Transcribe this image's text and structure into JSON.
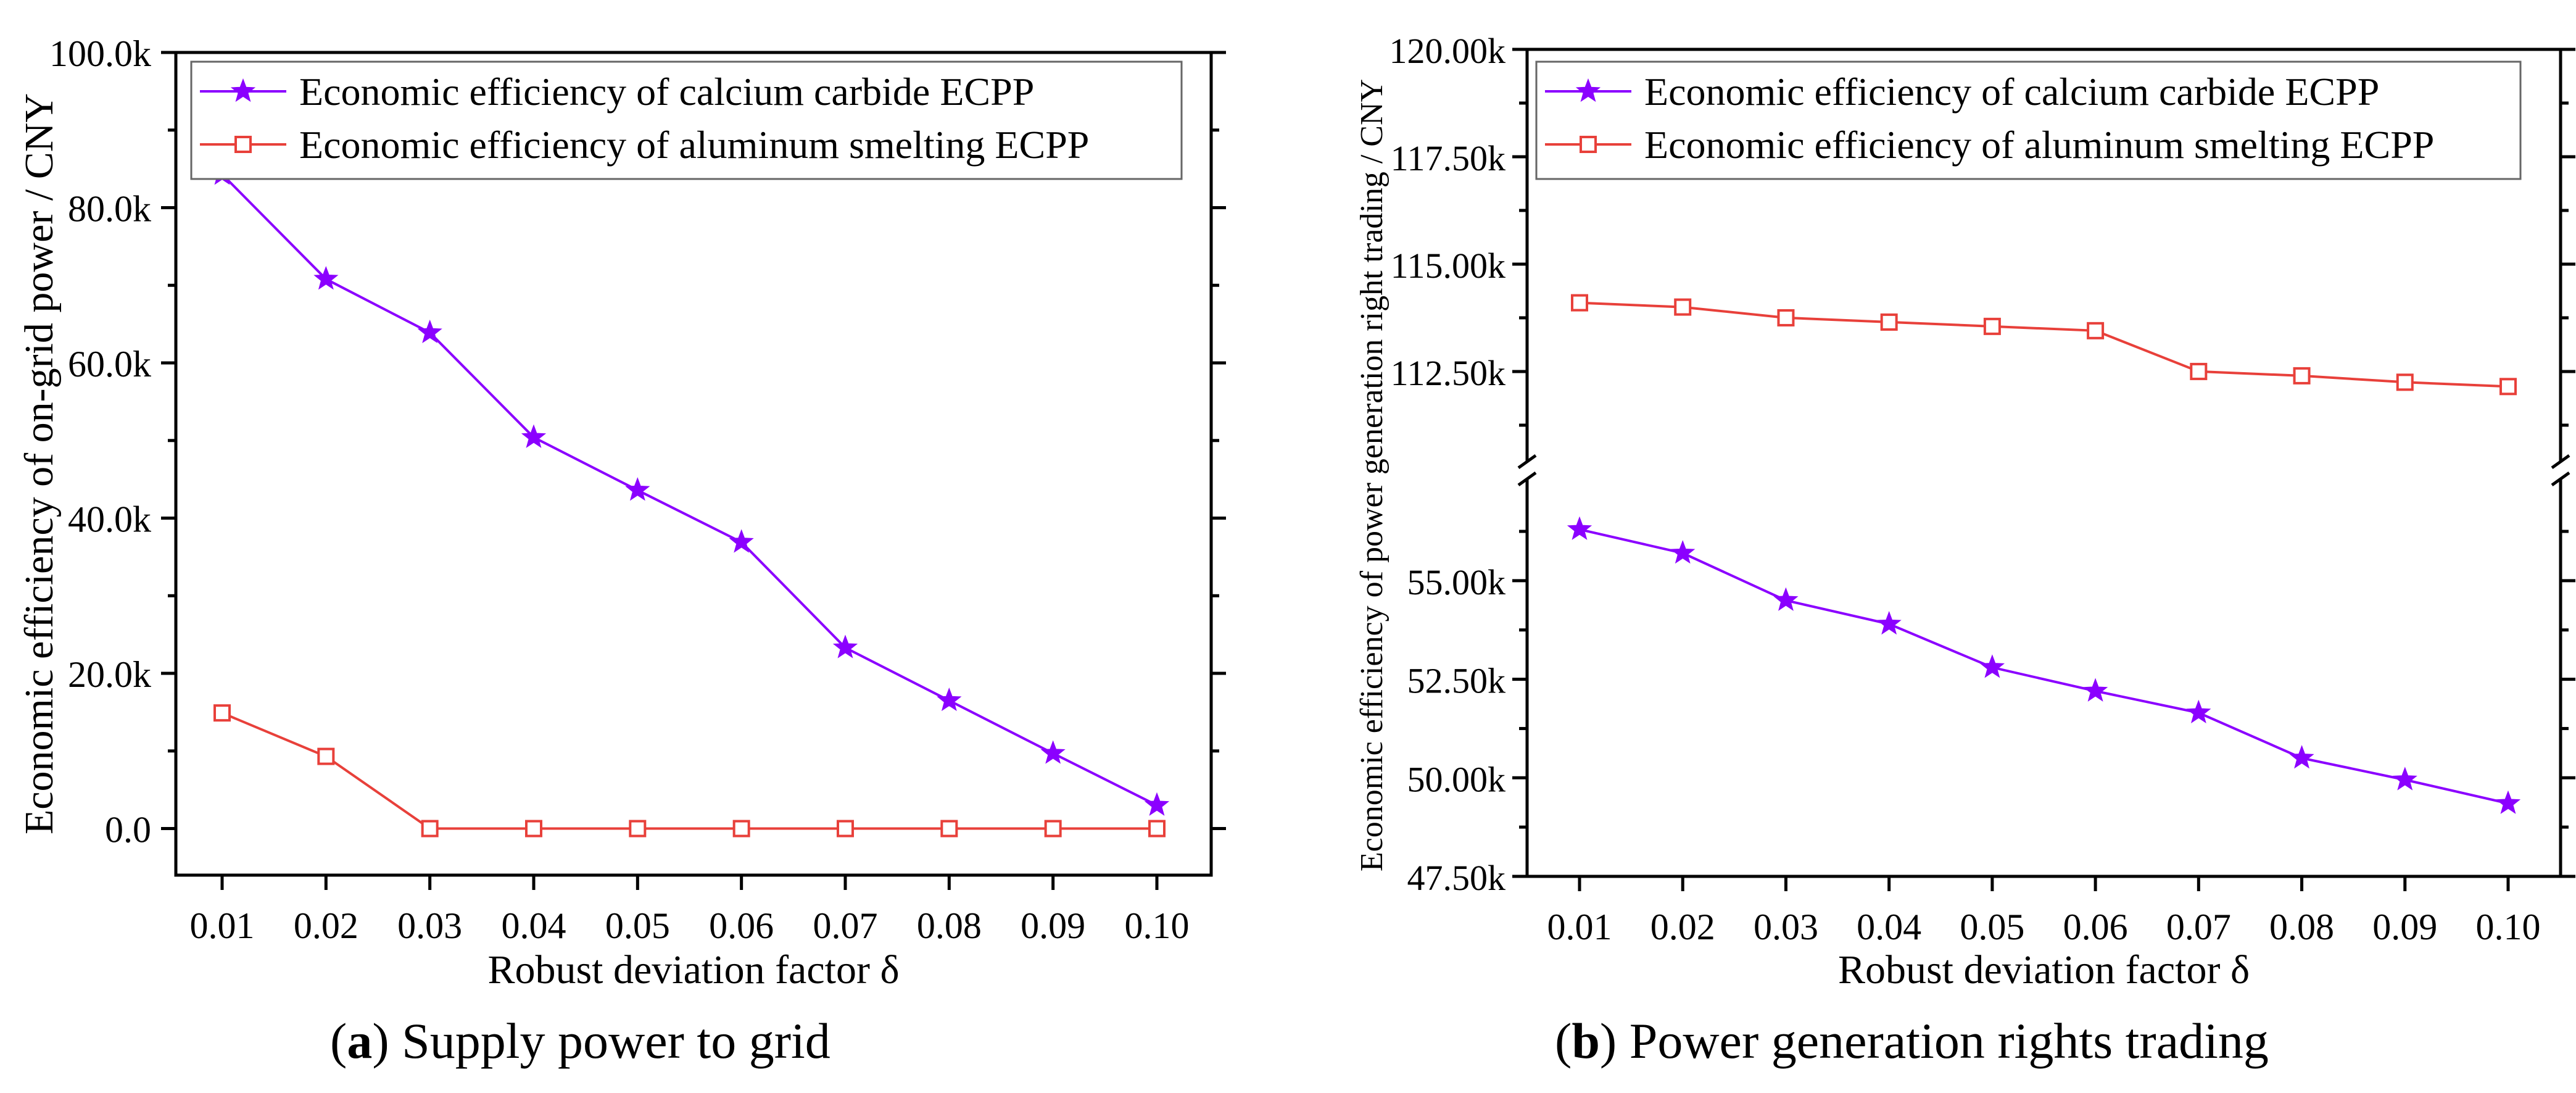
{
  "captions": [
    {
      "letter": "a",
      "text": "Supply power to grid"
    },
    {
      "letter": "b",
      "text": "Power generation rights trading"
    }
  ],
  "colors": {
    "purple": "#8B00FF",
    "red": "#E8403A",
    "axis": "#000000"
  },
  "chart_data": [
    {
      "type": "line",
      "xlabel": "Robust deviation factor δ",
      "ylabel": "Economic efficiency of on-grid power / CNY",
      "categories": [
        "0.01",
        "0.02",
        "0.03",
        "0.04",
        "0.05",
        "0.06",
        "0.07",
        "0.08",
        "0.09",
        "0.10"
      ],
      "ylim": [
        -6000,
        100000
      ],
      "yticks": [
        0,
        20000,
        40000,
        60000,
        80000,
        100000
      ],
      "ytick_labels": [
        "0.0",
        "20.0k",
        "40.0k",
        "60.0k",
        "80.0k",
        "100.0k"
      ],
      "legend_position": "top-left",
      "grid": false,
      "series": [
        {
          "name": "Economic efficiency of calcium carbide ECPP",
          "marker": "star",
          "color": "#8B00FF",
          "values": [
            84300,
            70800,
            63900,
            50400,
            43600,
            36900,
            23300,
            16500,
            9700,
            3000
          ]
        },
        {
          "name": "Economic efficiency of aluminum smelting ECPP",
          "marker": "square",
          "color": "#E8403A",
          "values": [
            14900,
            9300,
            0,
            0,
            0,
            0,
            0,
            0,
            0,
            0
          ]
        }
      ]
    },
    {
      "type": "line",
      "xlabel": "Robust deviation factor δ",
      "ylabel": "Economic efficiency of power generation right trading / CNY",
      "categories": [
        "0.01",
        "0.02",
        "0.03",
        "0.04",
        "0.05",
        "0.06",
        "0.07",
        "0.08",
        "0.09",
        "0.10"
      ],
      "axis_break": true,
      "ylim_lower": [
        47500,
        57800
      ],
      "ylim_upper": [
        110200,
        120000
      ],
      "yticks_lower": [
        47500,
        50000,
        52500,
        55000
      ],
      "ytick_labels_lower": [
        "47.50k",
        "50.00k",
        "52.50k",
        "55.00k"
      ],
      "yticks_upper": [
        112500,
        115000,
        117500,
        120000
      ],
      "ytick_labels_upper": [
        "112.50k",
        "115.00k",
        "117.50k",
        "120.00k"
      ],
      "legend_position": "top",
      "grid": false,
      "series": [
        {
          "name": "Economic efficiency of calcium carbide ECPP",
          "marker": "star",
          "color": "#8B00FF",
          "values": [
            56300,
            55700,
            54500,
            53900,
            52800,
            52200,
            51650,
            50500,
            49950,
            49350
          ]
        },
        {
          "name": "Economic efficiency of aluminum smelting ECPP",
          "marker": "square",
          "color": "#E8403A",
          "values": [
            114100,
            114000,
            113750,
            113650,
            113550,
            113450,
            112500,
            112400,
            112250,
            112150
          ]
        }
      ]
    }
  ]
}
